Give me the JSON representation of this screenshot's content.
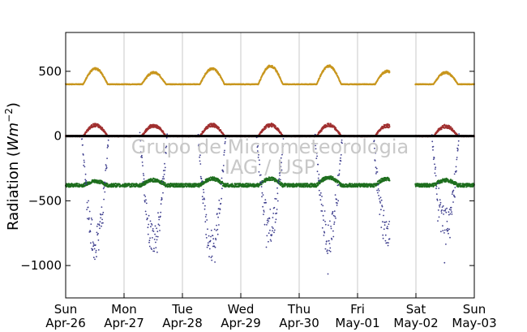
{
  "chart_data": {
    "type": "scatter",
    "title": "",
    "ylabel": "Radiation",
    "ylabel_unit_base": "Wm",
    "ylabel_unit_exp": "−2",
    "ylim": [
      -1250,
      800
    ],
    "yticks": [
      500,
      0,
      -500,
      -1000
    ],
    "ytick_labels": [
      "500",
      "0",
      "−500",
      "−1000"
    ],
    "xlim": [
      0,
      7
    ],
    "xticks": [
      {
        "day": "Sun",
        "date": "Apr-26",
        "x": 0
      },
      {
        "day": "Mon",
        "date": "Apr-27",
        "x": 1
      },
      {
        "day": "Tue",
        "date": "Apr-28",
        "x": 2
      },
      {
        "day": "Wed",
        "date": "Apr-29",
        "x": 3
      },
      {
        "day": "Thu",
        "date": "Apr-30",
        "x": 4
      },
      {
        "day": "Fri",
        "date": "May-01",
        "x": 5
      },
      {
        "day": "Sat",
        "date": "May-02",
        "x": 6
      },
      {
        "day": "Sun",
        "date": "May-03",
        "x": 7
      }
    ],
    "grid": "vertical",
    "data_gap": [
      5.55,
      5.99
    ],
    "series": [
      {
        "key": "upper",
        "color": "#c8961e",
        "baseline": 400,
        "peaks": [
          520,
          490,
          520,
          540,
          540,
          500,
          490
        ],
        "noise": 6
      },
      {
        "key": "red",
        "color": "#a03030",
        "baseline": 0,
        "peaks": [
          85,
          80,
          85,
          85,
          85,
          80,
          75
        ],
        "noise": 10
      },
      {
        "key": "green",
        "color": "#1e6e1e",
        "baseline": -380,
        "peaks": [
          -350,
          -340,
          -330,
          -330,
          -320,
          -330,
          -340
        ],
        "noise": 14
      },
      {
        "key": "blue",
        "color": "#3c3c8c",
        "baseline": 0,
        "peaks": [
          -820,
          -820,
          -860,
          -700,
          -780,
          -760,
          -700
        ],
        "noise": 110
      }
    ],
    "zero_line_color": "#000000"
  },
  "watermark": {
    "line1": "Grupo de Micrometeorologia",
    "line2": "IAG / USP"
  }
}
